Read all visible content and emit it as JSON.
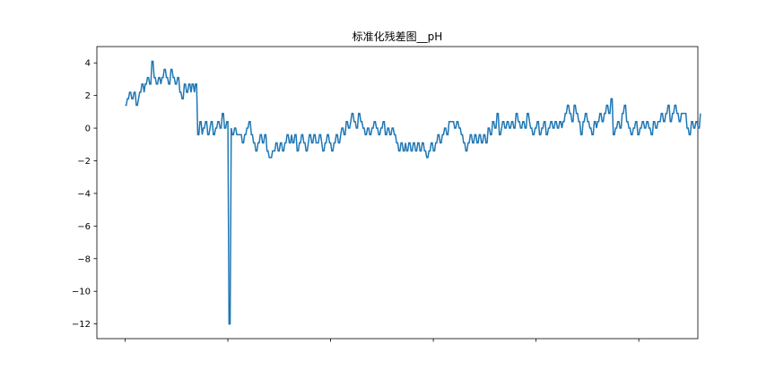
{
  "chart_data": {
    "type": "line",
    "title": "标准化残差图__pH",
    "xlabel": "",
    "ylabel": "",
    "series_color": "#1f77b4",
    "ylim": [
      -12.9,
      5.0
    ],
    "xlim": [
      -0.055,
      1.115
    ],
    "yticks": [
      4,
      2,
      0,
      -2,
      -4,
      -6,
      -8,
      -10,
      -12
    ],
    "ytick_labels": [
      "4",
      "2",
      "0",
      "−2",
      "−4",
      "−6",
      "−8",
      "−10",
      "−12"
    ],
    "xticks": [
      0,
      0.2,
      0.4,
      0.6,
      0.8,
      1.0
    ],
    "xtick_labels": [
      "",
      "",
      "",
      "",
      "",
      ""
    ],
    "grid": false,
    "series": [
      {
        "values": [
          1.4,
          1.4,
          1.8,
          1.8,
          2.2,
          2.2,
          1.8,
          1.8,
          2.2,
          2.2,
          1.4,
          1.4,
          1.8,
          2.2,
          2.2,
          2.7,
          2.7,
          2.2,
          2.7,
          2.7,
          3.1,
          3.1,
          2.7,
          2.7,
          4.1,
          4.1,
          3.1,
          3.1,
          2.7,
          2.7,
          3.1,
          3.1,
          2.7,
          3.1,
          3.1,
          3.6,
          3.6,
          3.1,
          3.1,
          2.7,
          2.7,
          3.6,
          3.6,
          3.1,
          3.1,
          2.7,
          2.7,
          3.1,
          3.1,
          2.2,
          2.2,
          1.8,
          1.8,
          2.7,
          2.7,
          2.2,
          2.2,
          2.7,
          2.7,
          2.2,
          2.7,
          2.7,
          2.2,
          2.7,
          2.7,
          -0.4,
          -0.4,
          0.4,
          0.4,
          -0.4,
          0.0,
          0.0,
          0.4,
          0.4,
          -0.4,
          -0.4,
          0.0,
          0.4,
          0.4,
          -0.4,
          -0.4,
          0.0,
          0.0,
          0.4,
          0.4,
          0.0,
          0.0,
          0.9,
          0.9,
          0.0,
          0.0,
          0.4,
          0.4,
          -12.0,
          -12.0,
          0.0,
          -0.4,
          -0.4,
          0.0,
          0.0,
          -0.4,
          -0.4,
          -0.4,
          -0.4,
          -0.4,
          -0.9,
          -0.9,
          -0.4,
          -0.4,
          0.0,
          0.0,
          0.4,
          0.4,
          -0.4,
          -0.4,
          -0.9,
          -0.9,
          -1.4,
          -1.4,
          -0.9,
          -0.9,
          -0.4,
          -0.4,
          -0.9,
          -0.9,
          -0.4,
          -0.4,
          -1.4,
          -1.4,
          -1.8,
          -1.8,
          -1.8,
          -1.4,
          -1.4,
          -1.4,
          -0.9,
          -0.9,
          -1.4,
          -1.4,
          -0.9,
          -0.9,
          -1.4,
          -1.4,
          -0.9,
          -0.9,
          -0.4,
          -0.4,
          -0.9,
          -0.9,
          -0.4,
          -0.9,
          -0.9,
          -0.4,
          -0.4,
          -1.4,
          -1.4,
          -0.9,
          -0.9,
          -0.4,
          -0.4,
          -0.9,
          -0.9,
          -1.4,
          -1.4,
          -0.9,
          -0.4,
          -0.4,
          -0.9,
          -0.9,
          -0.4,
          -0.4,
          -0.9,
          -0.9,
          -0.9,
          -0.4,
          -0.4,
          -0.9,
          -1.4,
          -1.4,
          -0.9,
          -0.9,
          -0.4,
          -0.4,
          -0.9,
          -0.9,
          -1.4,
          -1.4,
          -0.9,
          -0.9,
          -0.4,
          -0.4,
          -0.9,
          -0.9,
          -0.4,
          0.0,
          0.0,
          -0.4,
          -0.4,
          0.4,
          0.4,
          0.0,
          0.0,
          0.4,
          0.9,
          0.9,
          0.4,
          0.4,
          0.0,
          0.0,
          0.9,
          0.9,
          0.4,
          0.4,
          0.0,
          0.0,
          -0.4,
          -0.4,
          0.0,
          0.0,
          -0.4,
          -0.4,
          0.0,
          0.0,
          0.4,
          0.4,
          0.0,
          0.0,
          -0.4,
          -0.4,
          0.0,
          0.0,
          0.4,
          0.4,
          -0.4,
          -0.4,
          0.0,
          0.0,
          -0.4,
          -0.4,
          0.0,
          0.0,
          -0.4,
          -0.4,
          -0.9,
          -0.9,
          -1.4,
          -1.4,
          -0.9,
          -0.9,
          -1.4,
          -1.4,
          -0.9,
          -1.4,
          -1.4,
          -0.9,
          -0.9,
          -1.4,
          -1.4,
          -0.9,
          -0.9,
          -1.4,
          -1.4,
          -0.9,
          -0.9,
          -1.4,
          -1.4,
          -0.9,
          -0.9,
          -1.4,
          -1.4,
          -1.8,
          -1.8,
          -1.4,
          -1.4,
          -0.9,
          -0.9,
          -1.4,
          -1.4,
          -0.9,
          -0.9,
          -0.4,
          -0.4,
          -0.9,
          -0.9,
          -0.4,
          -0.4,
          0.0,
          0.0,
          -0.4,
          -0.4,
          0.4,
          0.4,
          0.4,
          0.4,
          0.4,
          0.0,
          0.0,
          0.4,
          0.4,
          0.0,
          0.0,
          -0.4,
          -0.4,
          -0.9,
          -0.9,
          -1.4,
          -1.4,
          -0.9,
          -0.9,
          -0.4,
          -0.4,
          -0.9,
          -0.9,
          -0.4,
          -0.4,
          -0.9,
          -0.9,
          -0.4,
          -0.4,
          -0.9,
          -0.9,
          -0.4,
          -0.4,
          -0.9,
          -0.9,
          0.0,
          0.0,
          -0.4,
          -0.4,
          0.4,
          0.4,
          0.0,
          0.0,
          0.9,
          0.9,
          -0.4,
          -0.4,
          0.0,
          0.4,
          0.4,
          0.0,
          0.0,
          0.4,
          0.4,
          0.0,
          0.0,
          0.4,
          0.4,
          0.0,
          0.0,
          0.9,
          0.9,
          0.4,
          0.4,
          0.0,
          0.0,
          0.4,
          0.4,
          0.0,
          0.0,
          0.9,
          0.9,
          0.4,
          0.0,
          0.0,
          -0.4,
          -0.4,
          0.0,
          0.0,
          0.4,
          0.4,
          -0.4,
          -0.4,
          0.0,
          0.0,
          0.4,
          0.4,
          -0.4,
          -0.4,
          0.0,
          0.0,
          0.4,
          0.4,
          0.0,
          0.0,
          0.4,
          0.4,
          0.0,
          0.0,
          0.4,
          0.4,
          0.0,
          0.4,
          0.4,
          0.9,
          0.9,
          1.4,
          1.4,
          0.9,
          0.9,
          0.4,
          0.4,
          1.4,
          1.4,
          0.9,
          0.9,
          0.4,
          0.4,
          -0.4,
          -0.4,
          0.4,
          0.4,
          0.9,
          0.9,
          0.4,
          0.4,
          0.0,
          0.0,
          -0.4,
          -0.4,
          0.4,
          0.4,
          0.0,
          0.4,
          0.4,
          0.9,
          0.9,
          0.4,
          0.4,
          0.9,
          0.9,
          1.4,
          1.4,
          0.9,
          0.9,
          1.8,
          1.8,
          -0.4,
          -0.4,
          0.0,
          0.0,
          0.4,
          0.4,
          0.0,
          0.0,
          0.9,
          0.9,
          1.4,
          1.4,
          0.4,
          0.4,
          0.0,
          0.0,
          -0.4,
          -0.4,
          0.0,
          0.0,
          0.4,
          0.4,
          -0.4,
          -0.4,
          0.0,
          0.0,
          0.4,
          0.4,
          0.0,
          0.0,
          0.4,
          0.4,
          0.0,
          0.0,
          -0.4,
          -0.4,
          0.4,
          0.4,
          0.0,
          0.0,
          0.4,
          0.4,
          0.4,
          0.9,
          0.9,
          0.4,
          0.4,
          0.9,
          0.9,
          1.4,
          1.4,
          0.4,
          0.4,
          0.9,
          0.9,
          1.4,
          1.4,
          0.9,
          0.9,
          0.4,
          0.4,
          0.9,
          0.9,
          0.9,
          0.9,
          0.9,
          0.0,
          0.0,
          -0.4,
          -0.4,
          0.4,
          0.4,
          0.0,
          0.0,
          0.4,
          0.4,
          0.0,
          0.0,
          0.9
        ]
      }
    ]
  }
}
